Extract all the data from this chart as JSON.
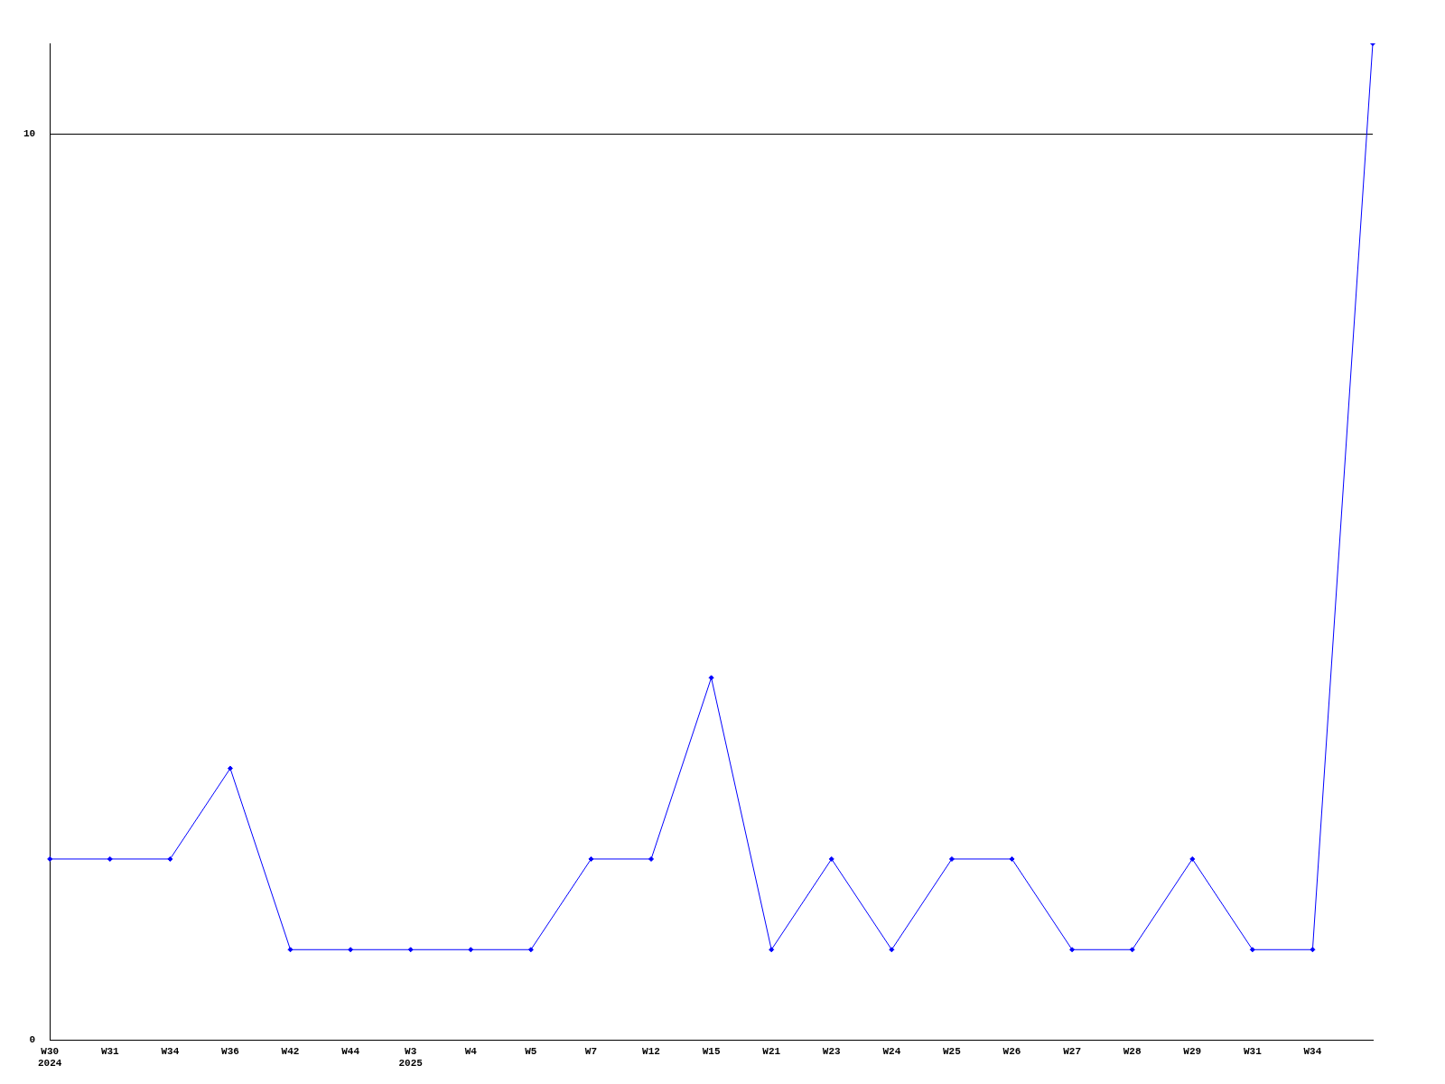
{
  "chart_data": {
    "type": "line",
    "categories": [
      "W30\n2024",
      "W31",
      "W34",
      "W36",
      "W42",
      "W44",
      "W3\n2025",
      "W4",
      "W5",
      "W7",
      "W12",
      "W15",
      "W21",
      "W23",
      "W24",
      "W25",
      "W26",
      "W27",
      "W28",
      "W29",
      "W31",
      "W34",
      null
    ],
    "series": [
      {
        "color": "#0000ff",
        "values": [
          2,
          2,
          2,
          3,
          1,
          1,
          1,
          1,
          1,
          2,
          2,
          4,
          1,
          2,
          1,
          2,
          2,
          1,
          1,
          2,
          1,
          1,
          11
        ]
      }
    ],
    "ylim": [
      0,
      11
    ],
    "yticks": [
      0,
      10
    ],
    "grid": "y",
    "legend": false,
    "marker": "diamond",
    "line_style": "solid"
  }
}
